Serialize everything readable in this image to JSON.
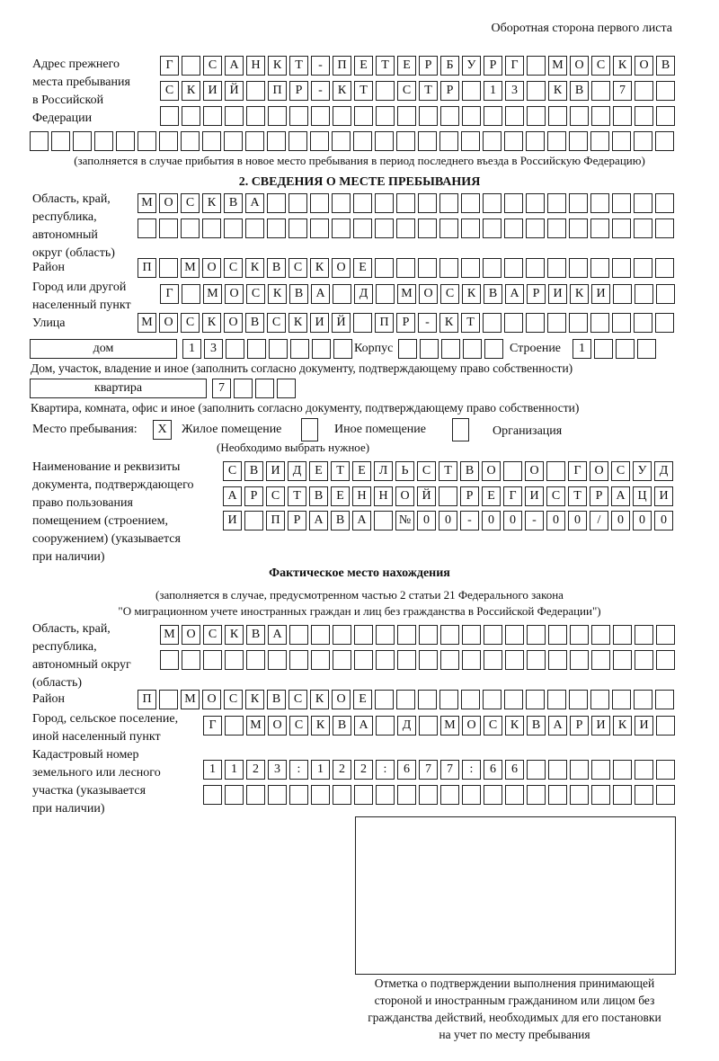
{
  "header": {
    "page_side": "Оборотная сторона первого листа"
  },
  "previous_address": {
    "label_lines": [
      "Адрес прежнего",
      "места пребывания",
      "в Российской",
      "Федерации"
    ],
    "rows": [
      [
        "Г",
        "",
        "С",
        "А",
        "Н",
        "К",
        "Т",
        "-",
        "П",
        "Е",
        "Т",
        "Е",
        "Р",
        "Б",
        "У",
        "Р",
        "Г",
        "",
        "М",
        "О",
        "С",
        "К",
        "О",
        "В"
      ],
      [
        "С",
        "К",
        "И",
        "Й",
        "",
        "П",
        "Р",
        "-",
        "К",
        "Т",
        "",
        "С",
        "Т",
        "Р",
        "",
        "1",
        "3",
        "",
        "К",
        "В",
        "",
        "7",
        "",
        ""
      ],
      [
        "",
        "",
        "",
        "",
        "",
        "",
        "",
        "",
        "",
        "",
        "",
        "",
        "",
        "",
        "",
        "",
        "",
        "",
        "",
        "",
        "",
        "",
        "",
        ""
      ],
      [
        "",
        "",
        "",
        "",
        "",
        "",
        "",
        "",
        "",
        "",
        "",
        "",
        "",
        "",
        "",
        "",
        "",
        "",
        "",
        "",
        "",
        "",
        "",
        "",
        "",
        "",
        "",
        "",
        "",
        ""
      ]
    ],
    "note": "(заполняется в случае прибытия в новое место пребывания в период последнего въезда в Российскую Федерацию)"
  },
  "section2": {
    "title": "2. СВЕДЕНИЯ О МЕСТЕ ПРЕБЫВАНИЯ",
    "region": {
      "label_lines": [
        "Область, край,",
        "республика,",
        "автономный",
        "округ (область)"
      ],
      "rows": [
        [
          "М",
          "О",
          "С",
          "К",
          "В",
          "А",
          "",
          "",
          "",
          "",
          "",
          "",
          "",
          "",
          "",
          "",
          "",
          "",
          "",
          "",
          "",
          "",
          "",
          "",
          ""
        ],
        [
          "",
          "",
          "",
          "",
          "",
          "",
          "",
          "",
          "",
          "",
          "",
          "",
          "",
          "",
          "",
          "",
          "",
          "",
          "",
          "",
          "",
          "",
          "",
          "",
          ""
        ]
      ]
    },
    "district": {
      "label": "Район",
      "cells": [
        "П",
        "",
        "М",
        "О",
        "С",
        "К",
        "В",
        "С",
        "К",
        "О",
        "Е",
        "",
        "",
        "",
        "",
        "",
        "",
        "",
        "",
        "",
        "",
        "",
        "",
        "",
        ""
      ]
    },
    "city": {
      "label_lines": [
        "Город или другой",
        "населенный пункт"
      ],
      "cells": [
        "Г",
        "",
        "М",
        "О",
        "С",
        "К",
        "В",
        "А",
        "",
        "Д",
        "",
        "М",
        "О",
        "С",
        "К",
        "В",
        "А",
        "Р",
        "И",
        "К",
        "И",
        "",
        "",
        ""
      ]
    },
    "street": {
      "label": "Улица",
      "cells": [
        "М",
        "О",
        "С",
        "К",
        "О",
        "В",
        "С",
        "К",
        "И",
        "Й",
        "",
        "П",
        "Р",
        "-",
        "К",
        "Т",
        "",
        "",
        "",
        "",
        "",
        "",
        "",
        "",
        ""
      ]
    },
    "house": {
      "type": "дом",
      "cells": [
        "1",
        "3",
        "",
        "",
        "",
        "",
        "",
        ""
      ],
      "korpus_label": "Корпус",
      "korpus_cells": [
        "",
        "",
        "",
        "",
        ""
      ],
      "stroenie_label": "Строение",
      "stroenie_cells": [
        "1",
        "",
        "",
        ""
      ],
      "note": "Дом, участок, владение и иное (заполнить согласно документу, подтверждающему право собственности)"
    },
    "apartment": {
      "type": "квартира",
      "cells": [
        "7",
        "",
        "",
        ""
      ],
      "note": "Квартира, комната, офис и иное (заполнить согласно документу, подтверждающему право собственности)"
    },
    "place_type": {
      "label": "Место пребывания:",
      "options": [
        {
          "label": "Жилое помещение",
          "mark": "X",
          "checked": true
        },
        {
          "label": "Иное помещение",
          "mark": "",
          "checked": false
        },
        {
          "label": "Организация",
          "mark": "",
          "checked": false
        }
      ],
      "note": "(Необходимо выбрать нужное)"
    },
    "document": {
      "label_lines": [
        "Наименование и реквизиты",
        "документа, подтверждающего",
        "право пользования",
        "помещением (строением,",
        "сооружением) (указывается",
        "при наличии)"
      ],
      "rows": [
        [
          "С",
          "В",
          "И",
          "Д",
          "Е",
          "Т",
          "Е",
          "Л",
          "Ь",
          "С",
          "Т",
          "В",
          "О",
          "",
          "О",
          "",
          "Г",
          "О",
          "С",
          "У",
          "Д"
        ],
        [
          "А",
          "Р",
          "С",
          "Т",
          "В",
          "Е",
          "Н",
          "Н",
          "О",
          "Й",
          "",
          "Р",
          "Е",
          "Г",
          "И",
          "С",
          "Т",
          "Р",
          "А",
          "Ц",
          "И"
        ],
        [
          "И",
          "",
          "П",
          "Р",
          "А",
          "В",
          "А",
          "",
          "№",
          "0",
          "0",
          "-",
          "0",
          "0",
          "-",
          "0",
          "0",
          "/",
          "0",
          "0",
          "0"
        ]
      ]
    }
  },
  "actual": {
    "title": "Фактическое место нахождения",
    "note_lines": [
      "(заполняется в случае, предусмотренном частью 2 статьи 21 Федерального закона",
      "\"О миграционном учете иностранных граждан и лиц без гражданства в Российской Федерации\")"
    ],
    "region": {
      "label_lines": [
        "Область, край,",
        "республика,",
        "автономный округ",
        "(область)"
      ],
      "rows": [
        [
          "М",
          "О",
          "С",
          "К",
          "В",
          "А",
          "",
          "",
          "",
          "",
          "",
          "",
          "",
          "",
          "",
          "",
          "",
          "",
          "",
          "",
          "",
          "",
          "",
          ""
        ],
        [
          "",
          "",
          "",
          "",
          "",
          "",
          "",
          "",
          "",
          "",
          "",
          "",
          "",
          "",
          "",
          "",
          "",
          "",
          "",
          "",
          "",
          "",
          "",
          ""
        ]
      ]
    },
    "district": {
      "label": "Район",
      "cells": [
        "П",
        "",
        "М",
        "О",
        "С",
        "К",
        "В",
        "С",
        "К",
        "О",
        "Е",
        "",
        "",
        "",
        "",
        "",
        "",
        "",
        "",
        "",
        "",
        "",
        "",
        "",
        ""
      ]
    },
    "city": {
      "label_lines": [
        "Город, сельское поселение,",
        "иной населенный пункт"
      ],
      "cells": [
        "Г",
        "",
        "М",
        "О",
        "С",
        "К",
        "В",
        "А",
        "",
        "Д",
        "",
        "М",
        "О",
        "С",
        "К",
        "В",
        "А",
        "Р",
        "И",
        "К",
        "И",
        ""
      ]
    },
    "cadastral": {
      "label_lines": [
        "Кадастровый номер",
        "земельного или лесного",
        "участка (указывается",
        "при наличии)"
      ],
      "rows": [
        [
          "1",
          "1",
          "2",
          "3",
          ":",
          "1",
          "2",
          "2",
          ":",
          "6",
          "7",
          "7",
          ":",
          "6",
          "6",
          "",
          "",
          "",
          "",
          "",
          "",
          ""
        ],
        [
          "",
          "",
          "",
          "",
          "",
          "",
          "",
          "",
          "",
          "",
          "",
          "",
          "",
          "",
          "",
          "",
          "",
          "",
          "",
          "",
          "",
          ""
        ]
      ]
    }
  },
  "stamp": {
    "caption_lines": [
      "Отметка о подтверждении выполнения принимающей",
      "стороной и иностранным гражданином или лицом без",
      "гражданства действий, необходимых для его постановки",
      "на учет по месту пребывания"
    ]
  }
}
